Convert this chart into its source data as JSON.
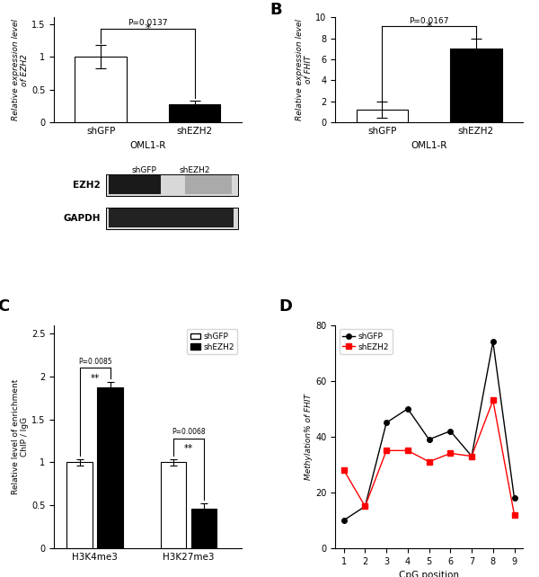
{
  "panel_A": {
    "categories": [
      "shGFP",
      "shEZH2"
    ],
    "values": [
      1.0,
      0.28
    ],
    "errors": [
      0.18,
      0.055
    ],
    "colors": [
      "white",
      "black"
    ],
    "ylabel": "Relative expression level\nof EZH2",
    "xlabel": "OML1-R",
    "ylim": [
      0,
      1.6
    ],
    "yticks": [
      0.0,
      0.5,
      1.0,
      1.5
    ],
    "pvalue": "P=0.0137",
    "sig": "*"
  },
  "panel_B": {
    "categories": [
      "shGFP",
      "shEZH2"
    ],
    "values": [
      1.2,
      7.0
    ],
    "errors": [
      0.8,
      0.95
    ],
    "colors": [
      "white",
      "black"
    ],
    "ylabel": "Relative expression level\nof FHIT",
    "xlabel": "OML1-R",
    "ylim": [
      0,
      10
    ],
    "yticks": [
      0,
      2,
      4,
      6,
      8,
      10
    ],
    "pvalue": "P=0.0167",
    "sig": "*"
  },
  "panel_C": {
    "groups": [
      "H3K4me3",
      "H3K27me3"
    ],
    "shGFP_vals": [
      1.0,
      1.0
    ],
    "shEZH2_vals": [
      1.87,
      0.46
    ],
    "shGFP_errs": [
      0.04,
      0.04
    ],
    "shEZH2_errs": [
      0.07,
      0.06
    ],
    "ylabel": "Relative level of enrichment\nChIP / IgG",
    "ylim": [
      0,
      2.6
    ],
    "yticks": [
      0.0,
      0.5,
      1.0,
      1.5,
      2.0,
      2.5
    ],
    "pvalues": [
      "P=0.0085",
      "P=0.0068"
    ],
    "sigs": [
      "**",
      "**"
    ]
  },
  "panel_D": {
    "x": [
      1,
      2,
      3,
      4,
      5,
      6,
      7,
      8,
      9
    ],
    "shGFP": [
      10,
      15,
      45,
      50,
      39,
      42,
      33,
      74,
      18
    ],
    "shEZH2": [
      28,
      15,
      35,
      35,
      31,
      34,
      33,
      53,
      12
    ],
    "ylabel": "Methylation% of FHIT",
    "xlabel": "CpG position",
    "ylim": [
      0,
      80
    ],
    "yticks": [
      0,
      20,
      40,
      60,
      80
    ]
  }
}
